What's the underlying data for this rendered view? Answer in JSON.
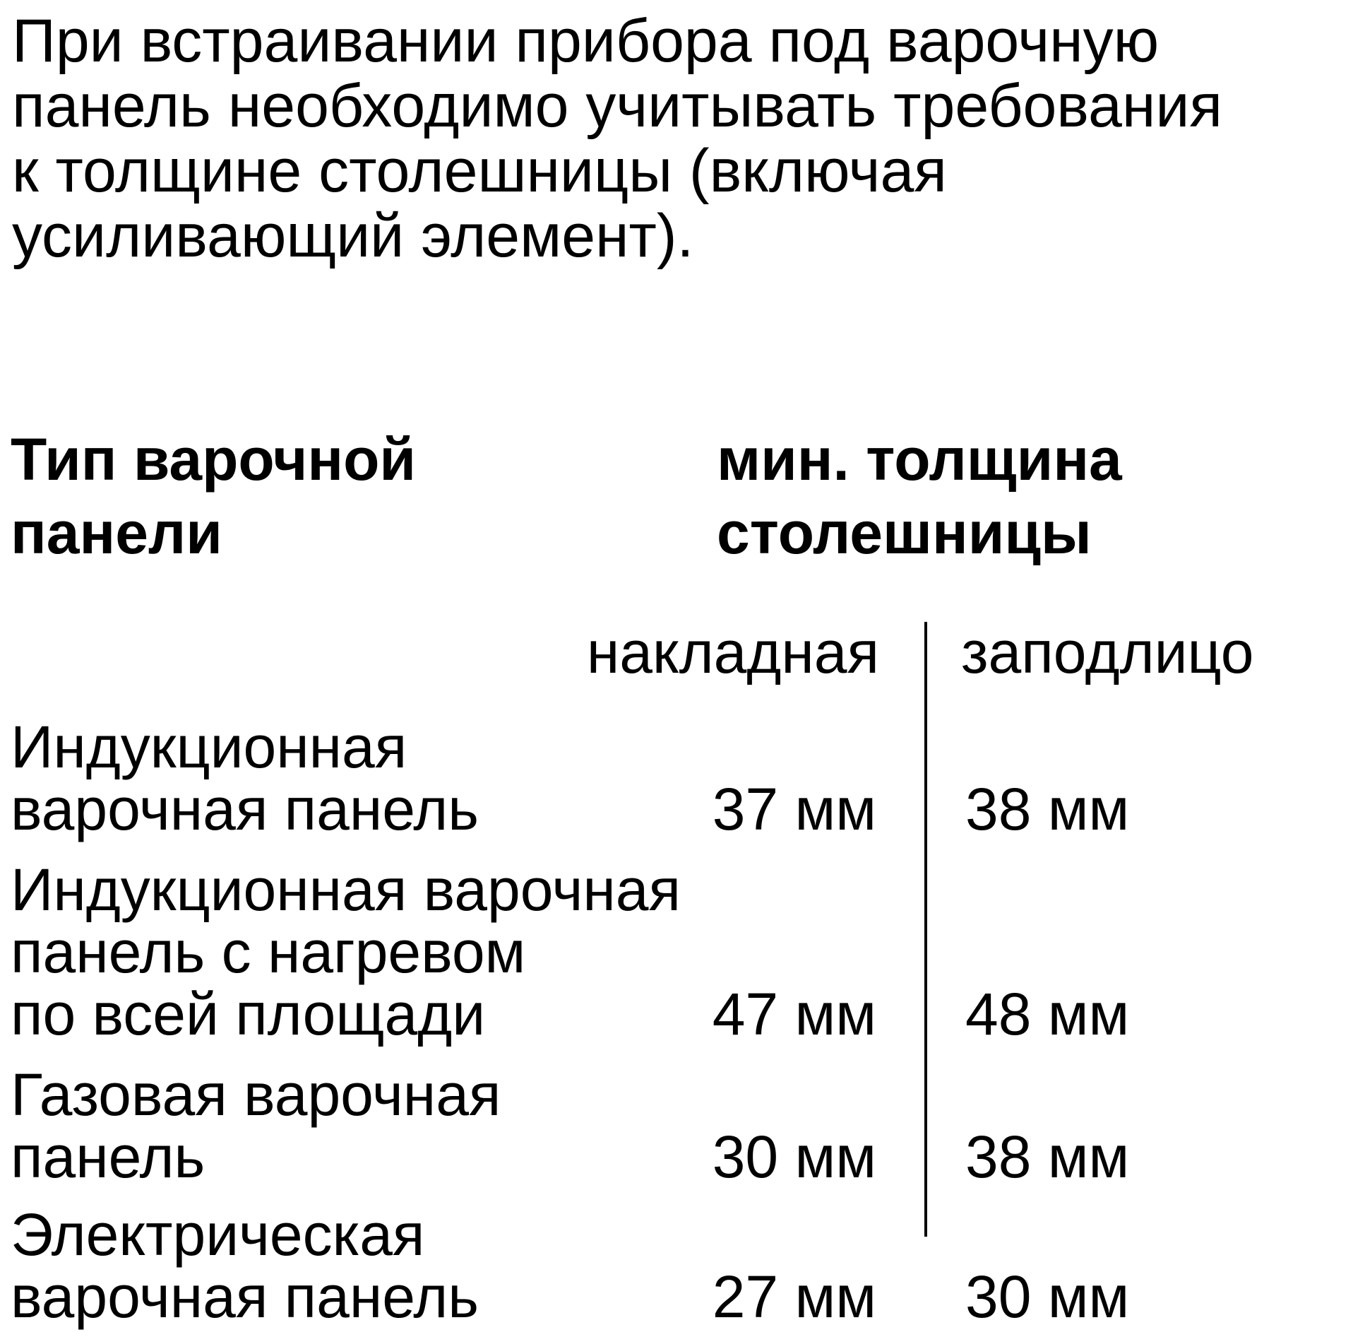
{
  "intro": {
    "lines": [
      "При встраивании прибора под варочную",
      "панель необходимо учитывать требования",
      "к толщине столешницы (включая",
      "усиливающий элемент)."
    ]
  },
  "table": {
    "header_type": [
      "Тип варочной",
      "панели"
    ],
    "header_min": [
      "мин. толщина",
      "столешницы"
    ],
    "sub_left": "накладная",
    "sub_right": "заподлицо",
    "rows": [
      {
        "label": [
          "Индукционная",
          "варочная панель"
        ],
        "overlay": "37 мм",
        "flush": "38 мм"
      },
      {
        "label": [
          "Индукционная варочная",
          "панель с нагревом",
          "по всей площади"
        ],
        "overlay": "47 мм",
        "flush": "48 мм"
      },
      {
        "label": [
          "Газовая варочная",
          "панель"
        ],
        "overlay": "30 мм",
        "flush": "38 мм"
      },
      {
        "label": [
          "Электрическая",
          "варочная панель"
        ],
        "overlay": "27 мм",
        "flush": "30 мм"
      }
    ]
  }
}
